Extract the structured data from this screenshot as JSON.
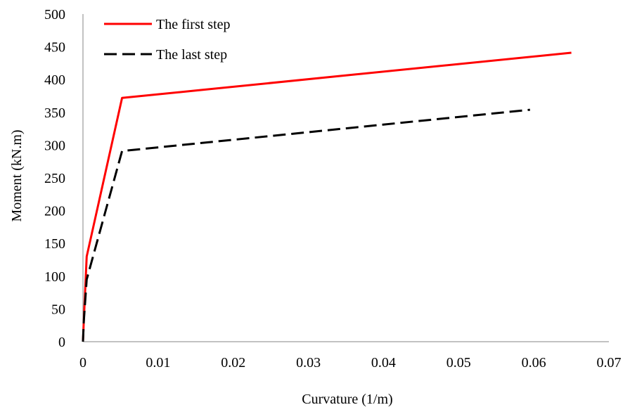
{
  "chart_data": {
    "type": "line",
    "title": "",
    "xlabel": "Curvature (1/m)",
    "ylabel": "Moment (kN.m)",
    "xlim": [
      0,
      0.07
    ],
    "ylim": [
      0,
      500
    ],
    "xticks": [
      0,
      0.01,
      0.02,
      0.03,
      0.04,
      0.05,
      0.06,
      0.07
    ],
    "xtick_labels": [
      "0",
      "0.01",
      "0.02",
      "0.03",
      "0.04",
      "0.05",
      "0.06",
      "0.07"
    ],
    "yticks": [
      0,
      50,
      100,
      150,
      200,
      250,
      300,
      350,
      400,
      450,
      500
    ],
    "ytick_labels": [
      "0",
      "50",
      "100",
      "150",
      "200",
      "250",
      "300",
      "350",
      "400",
      "450",
      "500"
    ],
    "grid": false,
    "legend_position": "top-left",
    "series": [
      {
        "name": "The first step",
        "color": "#ff0000",
        "dash": "solid",
        "x": [
          0,
          0.0001,
          0.0005,
          0.0052,
          0.065
        ],
        "y": [
          0,
          30,
          130,
          372,
          441
        ]
      },
      {
        "name": "The last step",
        "color": "#000000",
        "dash": "dashed",
        "x": [
          0,
          0.0001,
          0.0005,
          0.0052,
          0.0595
        ],
        "y": [
          0,
          30,
          95,
          291,
          354
        ]
      }
    ]
  }
}
